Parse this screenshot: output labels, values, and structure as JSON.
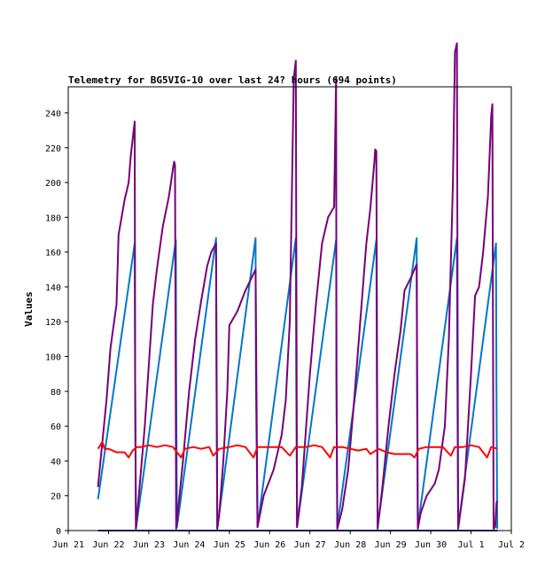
{
  "chart_data": {
    "type": "line",
    "title": "Telemetry for BG5VIG-10 over last 24? hours (694 points)",
    "xlabel": "",
    "ylabel": "Values",
    "ylim": [
      0,
      255
    ],
    "xlim": [
      0,
      11
    ],
    "grid": false,
    "legend": "none",
    "y_ticks": [
      0,
      20,
      40,
      60,
      80,
      100,
      120,
      140,
      160,
      180,
      200,
      220,
      240
    ],
    "x_ticks": [
      {
        "x": 0,
        "label": "Jun 21"
      },
      {
        "x": 1,
        "label": "Jun 22"
      },
      {
        "x": 2,
        "label": "Jun 23"
      },
      {
        "x": 3,
        "label": "Jun 24"
      },
      {
        "x": 4,
        "label": "Jun 25"
      },
      {
        "x": 5,
        "label": "Jun 26"
      },
      {
        "x": 6,
        "label": "Jun 27"
      },
      {
        "x": 7,
        "label": "Jun 28"
      },
      {
        "x": 8,
        "label": "Jun 29"
      },
      {
        "x": 9,
        "label": "Jun 30"
      },
      {
        "x": 10,
        "label": "Jul 1"
      },
      {
        "x": 11,
        "label": "Jul 2"
      }
    ],
    "series": [
      {
        "color": "#0077cc",
        "points": [
          [
            0.74,
            18
          ],
          [
            1.65,
            165
          ],
          [
            1.66,
            85
          ],
          [
            1.68,
            1
          ],
          [
            2.67,
            167
          ],
          [
            2.68,
            85
          ],
          [
            2.7,
            2
          ],
          [
            3.67,
            168
          ],
          [
            3.68,
            85
          ],
          [
            3.7,
            1
          ],
          [
            4.65,
            168
          ],
          [
            4.66,
            85
          ],
          [
            4.7,
            2
          ],
          [
            5.65,
            168
          ],
          [
            5.66,
            85
          ],
          [
            5.68,
            2
          ],
          [
            6.65,
            167
          ],
          [
            6.66,
            85
          ],
          [
            6.68,
            2
          ],
          [
            7.65,
            167
          ],
          [
            7.66,
            85
          ],
          [
            7.68,
            2
          ],
          [
            8.65,
            168
          ],
          [
            8.66,
            85
          ],
          [
            8.68,
            2
          ],
          [
            9.65,
            168
          ],
          [
            9.66,
            85
          ],
          [
            9.68,
            2
          ],
          [
            10.62,
            165
          ],
          [
            10.63,
            85
          ],
          [
            10.65,
            1
          ]
        ]
      },
      {
        "color": "#770077",
        "points": [
          [
            0.74,
            25
          ],
          [
            0.8,
            40
          ],
          [
            0.95,
            75
          ],
          [
            1.05,
            105
          ],
          [
            1.2,
            130
          ],
          [
            1.25,
            170
          ],
          [
            1.4,
            190
          ],
          [
            1.5,
            200
          ],
          [
            1.55,
            215
          ],
          [
            1.65,
            235
          ],
          [
            1.66,
            85
          ],
          [
            1.68,
            1
          ],
          [
            1.9,
            60
          ],
          [
            2.0,
            95
          ],
          [
            2.1,
            130
          ],
          [
            2.2,
            150
          ],
          [
            2.35,
            175
          ],
          [
            2.5,
            192
          ],
          [
            2.6,
            208
          ],
          [
            2.63,
            212
          ],
          [
            2.65,
            210
          ],
          [
            2.68,
            1
          ],
          [
            2.85,
            40
          ],
          [
            3.0,
            80
          ],
          [
            3.15,
            110
          ],
          [
            3.3,
            132
          ],
          [
            3.45,
            152
          ],
          [
            3.55,
            160
          ],
          [
            3.67,
            165
          ],
          [
            3.7,
            1
          ],
          [
            3.75,
            10
          ],
          [
            3.85,
            40
          ],
          [
            3.95,
            80
          ],
          [
            4.0,
            118
          ],
          [
            4.2,
            126
          ],
          [
            4.4,
            138
          ],
          [
            4.65,
            150
          ],
          [
            4.7,
            2
          ],
          [
            4.85,
            20
          ],
          [
            4.95,
            26
          ],
          [
            5.1,
            35
          ],
          [
            5.3,
            55
          ],
          [
            5.4,
            75
          ],
          [
            5.5,
            120
          ],
          [
            5.6,
            260
          ],
          [
            5.65,
            270
          ],
          [
            5.68,
            2
          ],
          [
            5.8,
            25
          ],
          [
            6.0,
            90
          ],
          [
            6.15,
            130
          ],
          [
            6.3,
            165
          ],
          [
            6.45,
            180
          ],
          [
            6.6,
            186
          ],
          [
            6.65,
            260
          ],
          [
            6.66,
            85
          ],
          [
            6.68,
            1
          ],
          [
            6.8,
            12
          ],
          [
            6.95,
            35
          ],
          [
            7.1,
            75
          ],
          [
            7.25,
            120
          ],
          [
            7.4,
            165
          ],
          [
            7.5,
            185
          ],
          [
            7.6,
            212
          ],
          [
            7.62,
            219
          ],
          [
            7.65,
            218
          ],
          [
            7.68,
            1
          ],
          [
            7.8,
            25
          ],
          [
            7.95,
            60
          ],
          [
            8.1,
            90
          ],
          [
            8.25,
            115
          ],
          [
            8.35,
            138
          ],
          [
            8.5,
            145
          ],
          [
            8.65,
            153
          ],
          [
            8.68,
            1
          ],
          [
            8.75,
            10
          ],
          [
            8.9,
            20
          ],
          [
            9.1,
            27
          ],
          [
            9.2,
            35
          ],
          [
            9.35,
            60
          ],
          [
            9.45,
            110
          ],
          [
            9.55,
            200
          ],
          [
            9.6,
            275
          ],
          [
            9.65,
            280
          ],
          [
            9.68,
            1
          ],
          [
            9.85,
            30
          ],
          [
            10.0,
            90
          ],
          [
            10.1,
            135
          ],
          [
            10.2,
            140
          ],
          [
            10.3,
            160
          ],
          [
            10.42,
            192
          ],
          [
            10.5,
            238
          ],
          [
            10.53,
            245
          ],
          [
            10.55,
            85
          ],
          [
            10.56,
            1
          ],
          [
            10.6,
            2
          ],
          [
            10.63,
            16
          ],
          [
            10.66,
            17
          ]
        ]
      },
      {
        "color": "#ff0000",
        "points": [
          [
            0.74,
            47
          ],
          [
            0.85,
            51
          ],
          [
            0.9,
            47
          ],
          [
            1.0,
            47
          ],
          [
            1.2,
            45
          ],
          [
            1.4,
            45
          ],
          [
            1.5,
            42
          ],
          [
            1.6,
            46
          ],
          [
            1.7,
            48
          ],
          [
            1.8,
            48
          ],
          [
            2.0,
            49
          ],
          [
            2.2,
            48
          ],
          [
            2.4,
            49
          ],
          [
            2.6,
            48
          ],
          [
            2.8,
            42
          ],
          [
            2.9,
            47
          ],
          [
            3.1,
            48
          ],
          [
            3.3,
            47
          ],
          [
            3.5,
            48
          ],
          [
            3.6,
            43
          ],
          [
            3.75,
            47
          ],
          [
            4.0,
            48
          ],
          [
            4.2,
            49
          ],
          [
            4.4,
            48
          ],
          [
            4.6,
            42
          ],
          [
            4.7,
            48
          ],
          [
            4.9,
            48
          ],
          [
            5.1,
            48
          ],
          [
            5.3,
            48
          ],
          [
            5.5,
            43
          ],
          [
            5.65,
            48
          ],
          [
            5.9,
            48
          ],
          [
            6.1,
            49
          ],
          [
            6.3,
            48
          ],
          [
            6.5,
            42
          ],
          [
            6.6,
            48
          ],
          [
            6.8,
            48
          ],
          [
            7.0,
            47
          ],
          [
            7.2,
            46
          ],
          [
            7.4,
            47
          ],
          [
            7.5,
            44
          ],
          [
            7.7,
            47
          ],
          [
            7.9,
            45
          ],
          [
            8.1,
            44
          ],
          [
            8.3,
            44
          ],
          [
            8.5,
            44
          ],
          [
            8.6,
            42
          ],
          [
            8.7,
            47
          ],
          [
            8.9,
            48
          ],
          [
            9.1,
            48
          ],
          [
            9.3,
            48
          ],
          [
            9.5,
            43
          ],
          [
            9.6,
            48
          ],
          [
            9.8,
            48
          ],
          [
            10.0,
            49
          ],
          [
            10.2,
            48
          ],
          [
            10.4,
            42
          ],
          [
            10.5,
            48
          ],
          [
            10.66,
            47
          ]
        ]
      },
      {
        "color": "#333399",
        "points": [
          [
            0.74,
            0
          ],
          [
            10.66,
            0
          ]
        ]
      }
    ]
  }
}
